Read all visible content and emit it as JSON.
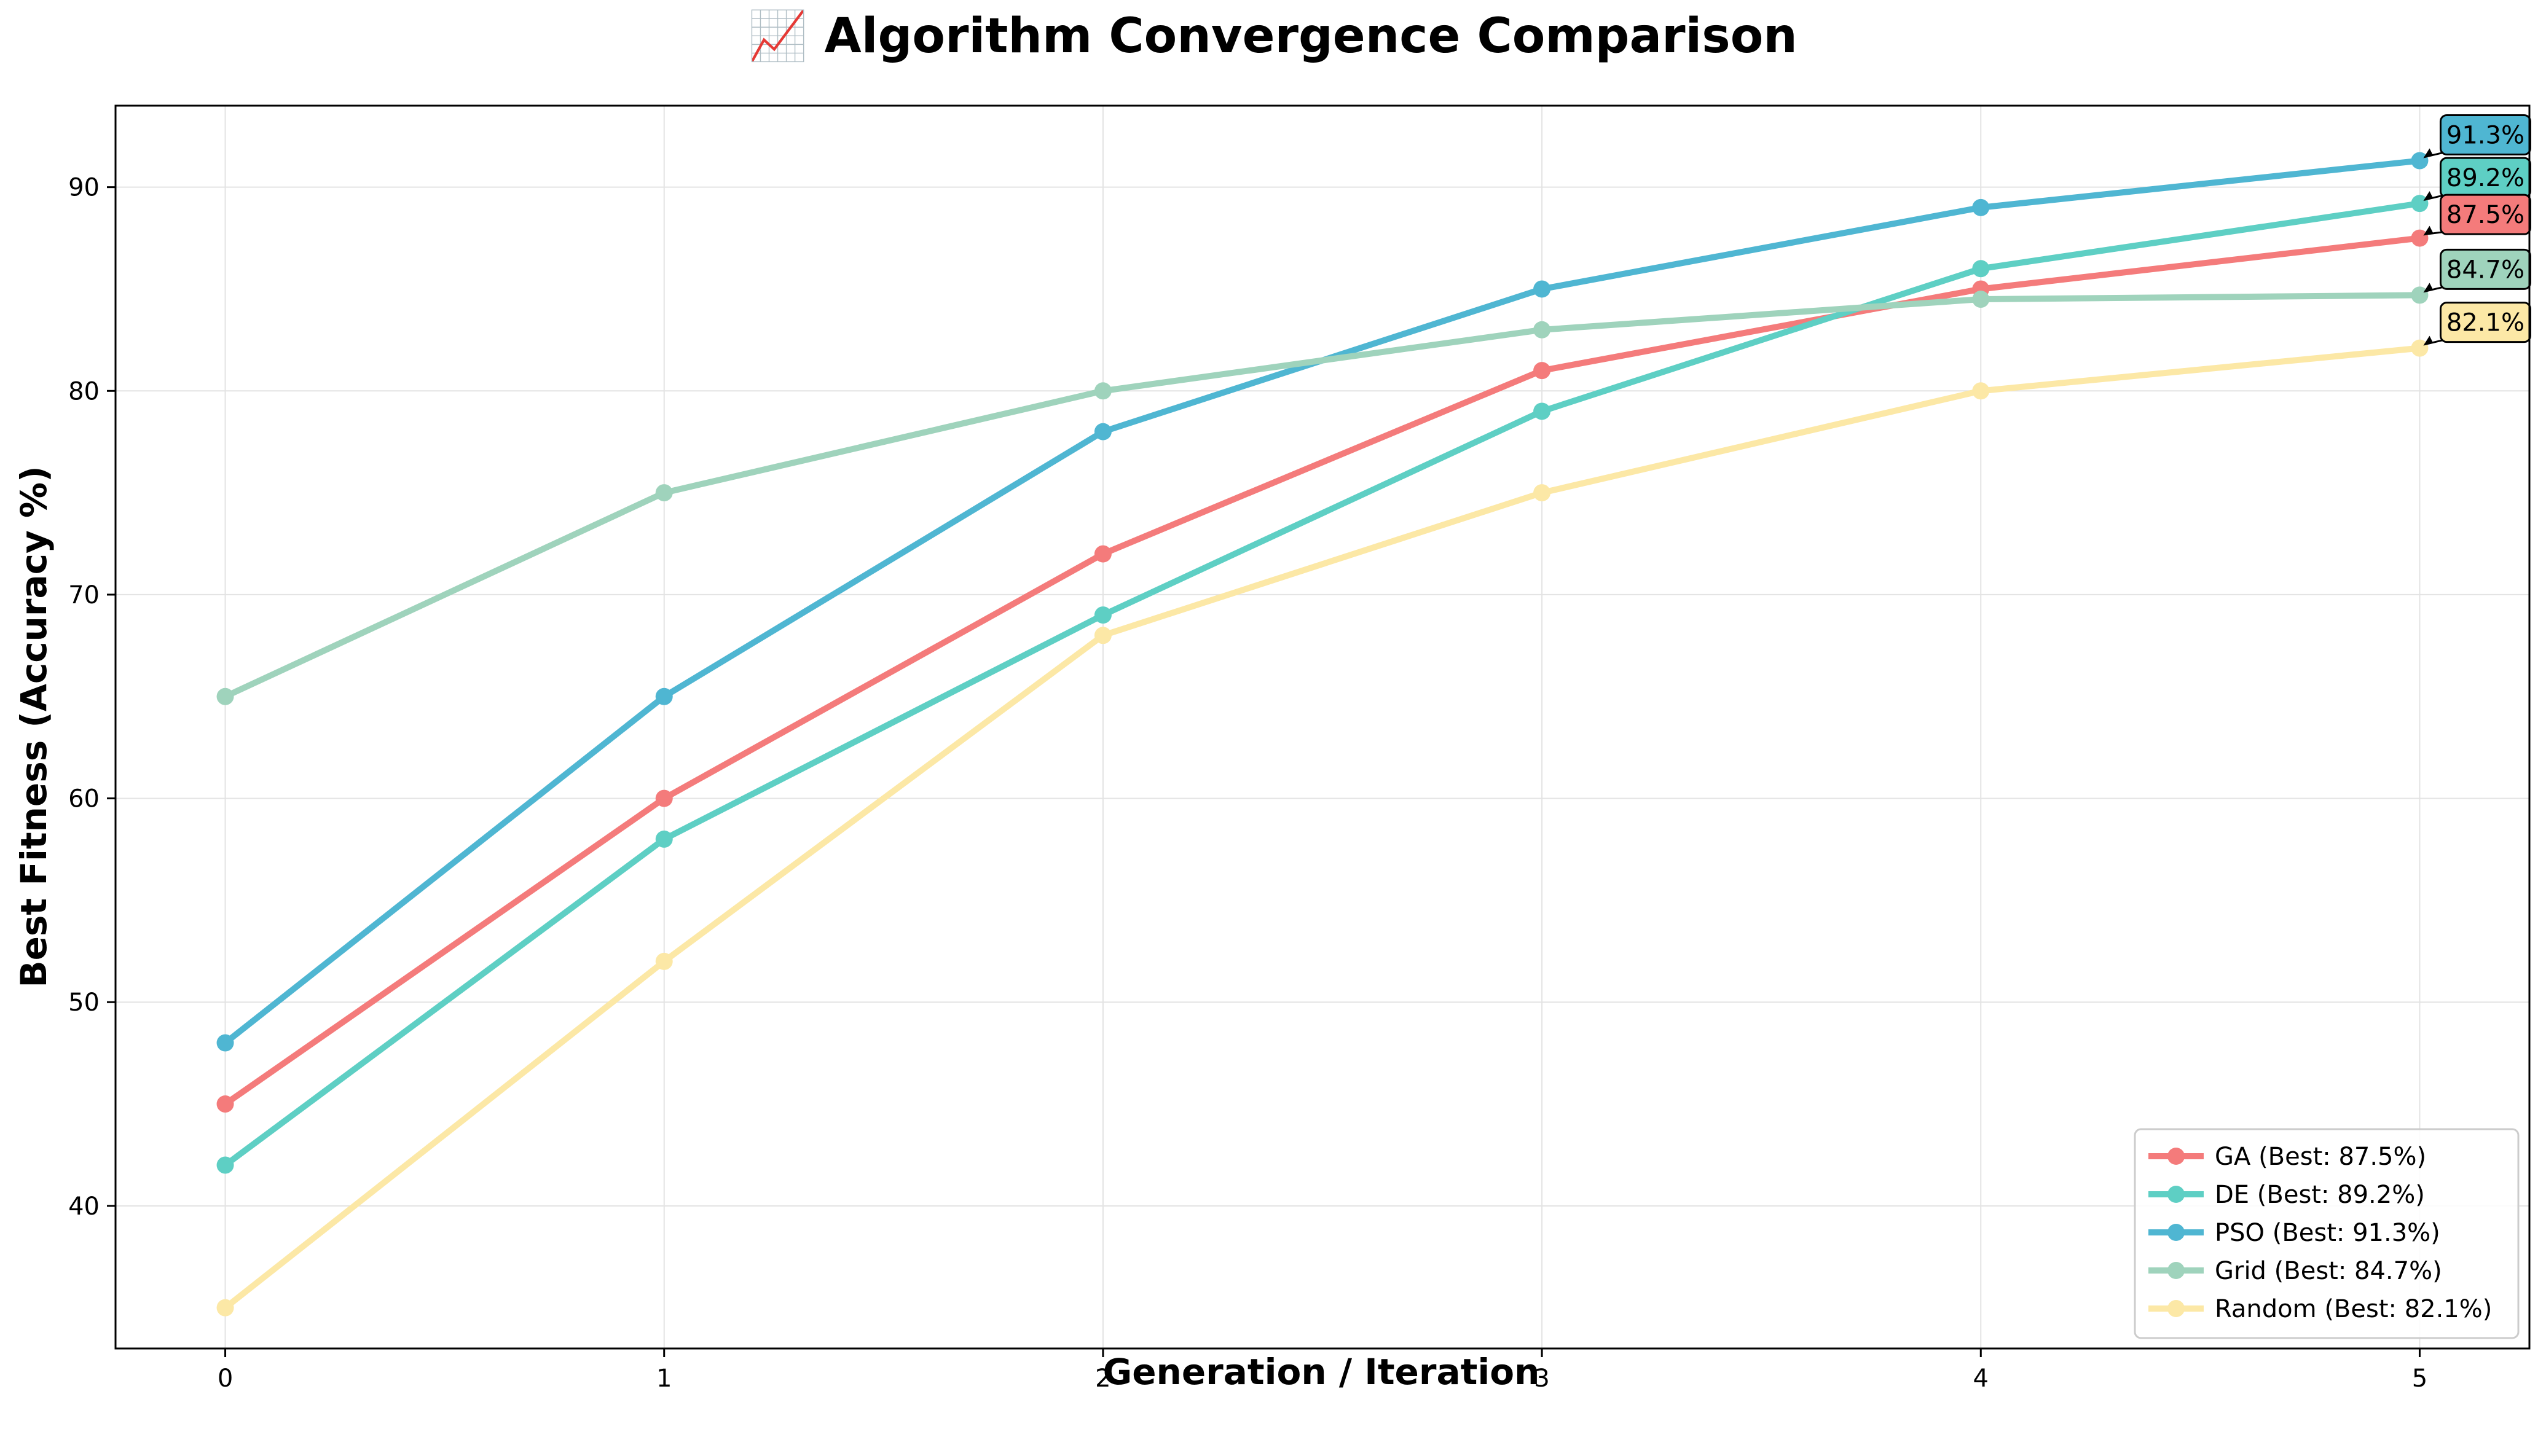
{
  "chart_data": {
    "type": "line",
    "title": "📈 Algorithm Convergence Comparison",
    "xlabel": "Generation / Iteration",
    "ylabel": "Best Fitness (Accuracy %)",
    "x": [
      0,
      1,
      2,
      3,
      4,
      5
    ],
    "xlim": [
      -0.25,
      5.25
    ],
    "ylim": [
      33,
      94
    ],
    "xticks": [
      "0",
      "1",
      "2",
      "3",
      "4",
      "5"
    ],
    "yticks": [
      "40",
      "50",
      "60",
      "70",
      "80",
      "90"
    ],
    "grid": true,
    "legend_position": "lower-right",
    "series": [
      {
        "name": "GA",
        "legend_label": "GA (Best: 87.5%)",
        "color": "#F47B7B",
        "values": [
          45,
          60,
          72,
          81,
          85,
          87.5
        ],
        "annotation": "87.5%"
      },
      {
        "name": "DE",
        "legend_label": "DE (Best: 89.2%)",
        "color": "#5ECFC4",
        "values": [
          42,
          58,
          69,
          79,
          86,
          89.2
        ],
        "annotation": "89.2%"
      },
      {
        "name": "PSO",
        "legend_label": "PSO (Best: 91.3%)",
        "color": "#4FB6D2",
        "values": [
          48,
          65,
          78,
          85,
          89,
          91.3
        ],
        "annotation": "91.3%"
      },
      {
        "name": "Grid",
        "legend_label": "Grid (Best: 84.7%)",
        "color": "#9FD3BC",
        "values": [
          65,
          75,
          80,
          83,
          84.5,
          84.7
        ],
        "annotation": "84.7%"
      },
      {
        "name": "Random",
        "legend_label": "Random (Best: 82.1%)",
        "color": "#FCE8A6",
        "values": [
          35,
          52,
          68,
          75,
          80,
          82.1
        ],
        "annotation": "82.1%"
      }
    ]
  }
}
